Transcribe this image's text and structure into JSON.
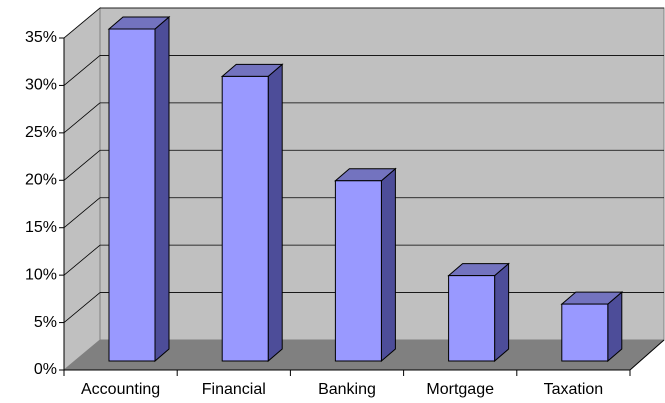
{
  "chart_data": {
    "type": "bar3d",
    "categories": [
      "Accounting",
      "Financial",
      "Banking",
      "Mortgage",
      "Taxation"
    ],
    "values": [
      35,
      30,
      19,
      9,
      6
    ],
    "color": "#9999ff",
    "ylim": [
      0,
      35
    ],
    "yticks": [
      {
        "value": 0,
        "label": "0%"
      },
      {
        "value": 5,
        "label": "5%"
      },
      {
        "value": 10,
        "label": "10%"
      },
      {
        "value": 15,
        "label": "15%"
      },
      {
        "value": 20,
        "label": "20%"
      },
      {
        "value": 25,
        "label": "25%"
      },
      {
        "value": 30,
        "label": "30%"
      },
      {
        "value": 35,
        "label": "35%"
      }
    ],
    "grid": true
  }
}
